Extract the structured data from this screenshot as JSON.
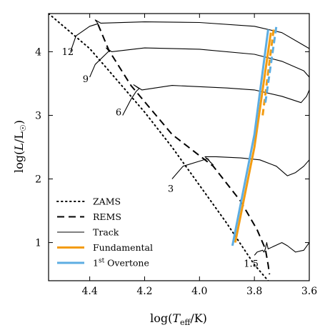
{
  "chart_data": {
    "type": "line",
    "title": "",
    "xlabel": "log(T_eff/K)",
    "ylabel": "log(L/L☉)",
    "xlim": [
      4.55,
      3.6
    ],
    "ylim": [
      0.4,
      4.6
    ],
    "x_inverted": true,
    "grid": false,
    "legend_position": "bottom-left",
    "xticks": [
      {
        "value": 4.4,
        "label": "4.4"
      },
      {
        "value": 4.2,
        "label": "4.2"
      },
      {
        "value": 4.0,
        "label": "4.0"
      },
      {
        "value": 3.8,
        "label": "3.8"
      },
      {
        "value": 3.6,
        "label": "3.6"
      }
    ],
    "yticks": [
      {
        "value": 1,
        "label": "1"
      },
      {
        "value": 2,
        "label": "2"
      },
      {
        "value": 3,
        "label": "3"
      },
      {
        "value": 4,
        "label": "4"
      }
    ],
    "legend": [
      {
        "label": "ZAMS",
        "style": "dotted",
        "color": "#000000"
      },
      {
        "label": "REMS",
        "style": "dashed",
        "color": "#000000"
      },
      {
        "label": "Track",
        "style": "solid-thin",
        "color": "#000000"
      },
      {
        "label": "Fundamental",
        "style": "solid-thick",
        "color": "#f39c12"
      },
      {
        "label_base": "1",
        "label_sup": "st",
        "label_rest": " Overtone",
        "style": "solid-thick",
        "color": "#5dade2"
      }
    ],
    "series": [
      {
        "name": "ZAMS",
        "style": "dotted",
        "color": "#000000",
        "points": [
          [
            4.55,
            4.6
          ],
          [
            4.4,
            4.05
          ],
          [
            4.3,
            3.55
          ],
          [
            4.2,
            3.05
          ],
          [
            4.1,
            2.5
          ],
          [
            4.0,
            1.9
          ],
          [
            3.9,
            1.3
          ],
          [
            3.8,
            0.65
          ],
          [
            3.75,
            0.4
          ]
        ]
      },
      {
        "name": "REMS",
        "style": "dashed",
        "color": "#000000",
        "points": [
          [
            4.37,
            4.43
          ],
          [
            4.33,
            4.02
          ],
          [
            4.25,
            3.47
          ],
          [
            4.1,
            2.7
          ],
          [
            3.95,
            2.2
          ],
          [
            3.85,
            1.65
          ],
          [
            3.79,
            1.2
          ],
          [
            3.76,
            0.9
          ],
          [
            3.75,
            0.65
          ],
          [
            3.745,
            0.5
          ]
        ]
      },
      {
        "name": "Track",
        "style": "solid-thin",
        "color": "#000000",
        "tracks": [
          {
            "label": "12",
            "label_at": [
              4.48,
              3.95
            ],
            "points": [
              [
                4.47,
                4.0
              ],
              [
                4.45,
                4.25
              ],
              [
                4.4,
                4.4
              ],
              [
                4.37,
                4.44
              ],
              [
                4.38,
                4.5
              ],
              [
                4.36,
                4.45
              ],
              [
                4.2,
                4.47
              ],
              [
                4.0,
                4.46
              ],
              [
                3.8,
                4.4
              ],
              [
                3.7,
                4.3
              ],
              [
                3.62,
                4.1
              ],
              [
                3.6,
                4.05
              ]
            ]
          },
          {
            "label": "9",
            "label_at": [
              4.415,
              3.52
            ],
            "points": [
              [
                4.4,
                3.6
              ],
              [
                4.38,
                3.8
              ],
              [
                4.33,
                4.01
              ],
              [
                4.34,
                4.06
              ],
              [
                4.32,
                4.0
              ],
              [
                4.2,
                4.06
              ],
              [
                4.0,
                4.04
              ],
              [
                3.8,
                3.96
              ],
              [
                3.7,
                3.85
              ],
              [
                3.62,
                3.7
              ],
              [
                3.6,
                3.6
              ]
            ]
          },
          {
            "label": "6",
            "label_at": [
              4.295,
              3.0
            ],
            "points": [
              [
                4.28,
                3.0
              ],
              [
                4.25,
                3.25
              ],
              [
                4.23,
                3.38
              ],
              [
                4.22,
                3.42
              ],
              [
                4.24,
                3.48
              ],
              [
                4.21,
                3.4
              ],
              [
                4.1,
                3.47
              ],
              [
                3.9,
                3.43
              ],
              [
                3.8,
                3.4
              ],
              [
                3.7,
                3.3
              ],
              [
                3.63,
                3.2
              ],
              [
                3.61,
                3.3
              ],
              [
                3.6,
                3.4
              ]
            ]
          },
          {
            "label": "3",
            "label_at": [
              4.105,
              1.8
            ],
            "points": [
              [
                4.1,
                2.0
              ],
              [
                4.06,
                2.2
              ],
              [
                4.0,
                2.28
              ],
              [
                3.97,
                2.32
              ],
              [
                3.96,
                2.26
              ],
              [
                3.95,
                2.22
              ],
              [
                3.98,
                2.35
              ],
              [
                3.94,
                2.35
              ],
              [
                3.85,
                2.33
              ],
              [
                3.78,
                2.3
              ],
              [
                3.72,
                2.2
              ],
              [
                3.68,
                2.05
              ],
              [
                3.65,
                2.1
              ],
              [
                3.62,
                2.2
              ],
              [
                3.6,
                2.3
              ]
            ]
          },
          {
            "label": "1.5",
            "label_at": [
              3.812,
              0.62
            ],
            "points": [
              [
                3.8,
                0.8
              ],
              [
                3.79,
                0.85
              ],
              [
                3.77,
                0.88
              ],
              [
                3.765,
                0.85
              ],
              [
                3.76,
                0.9
              ],
              [
                3.755,
                1.0
              ],
              [
                3.75,
                0.9
              ],
              [
                3.7,
                1.0
              ],
              [
                3.68,
                0.95
              ],
              [
                3.65,
                0.85
              ],
              [
                3.62,
                0.88
              ],
              [
                3.6,
                1.0
              ]
            ]
          }
        ]
      },
      {
        "name": "Fundamental",
        "style": "solid-thick",
        "color": "#f39c12",
        "points": [
          [
            3.87,
            1.0
          ],
          [
            3.8,
            2.5
          ],
          [
            3.74,
            4.3
          ]
        ],
        "dashed_points": [
          [
            3.77,
            3.0
          ],
          [
            3.73,
            4.35
          ]
        ]
      },
      {
        "name": "1st Overtone",
        "style": "solid-thick",
        "color": "#5dade2",
        "points": [
          [
            3.88,
            0.95
          ],
          [
            3.8,
            2.7
          ],
          [
            3.75,
            4.35
          ]
        ],
        "dashed_points": [
          [
            3.76,
            3.2
          ],
          [
            3.72,
            4.4
          ]
        ]
      }
    ]
  }
}
